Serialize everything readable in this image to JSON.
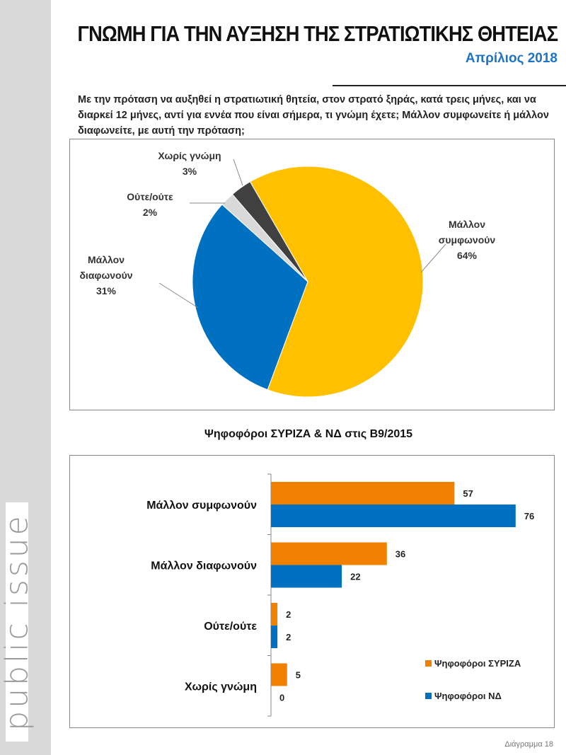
{
  "header": {
    "title": "ΓΝΩΜΗ ΓΙΑ ΤΗΝ ΑΥΞΗΣΗ ΤΗΣ ΣΤΡΑΤΙΩΤΙΚΗΣ ΘΗΤΕΙΑΣ",
    "date": "Απρίλιος 2018"
  },
  "question": "Με την πρόταση να αυξηθεί η στρατιωτική θητεία, στον στρατό ξηράς, κατά τρεις μήνες, και να διαρκεί 12 μήνες, αντί για εννέα που είναι σήμερα, τι γνώμη έχετε; Μάλλον συμφωνείτε ή μάλλον διαφωνείτε, με αυτή την πρόταση;",
  "logo": "public issue",
  "footer": "Διάγραμμα 18",
  "chart_data": [
    {
      "type": "pie",
      "slices": [
        {
          "label": "Μάλλον συμφωνούν",
          "value": 64,
          "color": "#ffc000"
        },
        {
          "label": "Μάλλον διαφωνούν",
          "value": 31,
          "color": "#0070c0"
        },
        {
          "label": "Ούτε/ούτε",
          "value": 2,
          "color": "#d9d9d9"
        },
        {
          "label": "Χωρίς γνώμη",
          "value": 3,
          "color": "#404040"
        }
      ]
    },
    {
      "type": "bar",
      "orientation": "horizontal",
      "title": "Ψηφοφόροι ΣΥΡΙΖΑ & ΝΔ στις Β9/2015",
      "categories": [
        "Μάλλον συμφωνούν",
        "Μάλλον διαφωνούν",
        "Ούτε/ούτε",
        "Χωρίς γνώμη"
      ],
      "series": [
        {
          "name": "Ψηφοφόροι ΣΥΡΙΖΑ",
          "values": [
            57,
            36,
            2,
            5
          ],
          "color": "#f08000"
        },
        {
          "name": "Ψηφοφόροι ΝΔ",
          "values": [
            76,
            22,
            2,
            0
          ],
          "color": "#0070c0"
        }
      ],
      "legend": "bottom-right"
    }
  ]
}
